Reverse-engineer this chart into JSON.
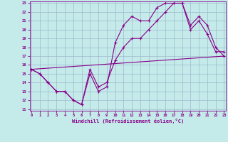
{
  "xlabel": "Windchill (Refroidissement éolien,°C)",
  "background_color": "#c4eaea",
  "grid_color": "#a0b8cc",
  "line_color": "#880088",
  "x_min": 0,
  "x_max": 23,
  "y_min": 11,
  "y_max": 23,
  "series1_x": [
    0,
    1,
    2,
    3,
    4,
    5,
    6,
    7,
    8,
    9,
    10,
    11,
    12,
    13,
    14,
    15,
    16,
    17,
    18,
    19,
    20,
    21,
    22,
    23
  ],
  "series1_y": [
    15.5,
    15.0,
    14.0,
    13.0,
    13.0,
    12.0,
    11.5,
    15.0,
    13.0,
    13.5,
    18.5,
    20.5,
    21.5,
    21.0,
    21.0,
    22.5,
    23.0,
    23.0,
    23.0,
    20.0,
    21.0,
    19.5,
    17.5,
    17.5
  ],
  "series2_x": [
    0,
    1,
    2,
    3,
    4,
    5,
    6,
    7,
    8,
    9,
    10,
    11,
    12,
    13,
    14,
    15,
    16,
    17,
    18,
    19,
    20,
    21,
    22,
    23
  ],
  "series2_y": [
    15.5,
    15.0,
    14.0,
    13.0,
    13.0,
    12.0,
    11.5,
    15.5,
    13.5,
    14.0,
    16.5,
    18.0,
    19.0,
    19.0,
    20.0,
    21.0,
    22.0,
    23.0,
    23.0,
    20.5,
    21.5,
    20.5,
    18.0,
    17.0
  ],
  "series3_x": [
    0,
    23
  ],
  "series3_y": [
    15.5,
    17.0
  ]
}
